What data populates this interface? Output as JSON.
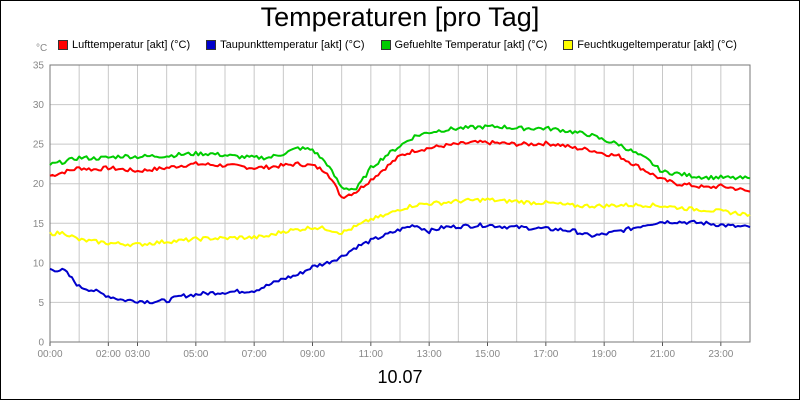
{
  "chart_data": {
    "type": "line",
    "title": "Temperaturen [pro Tag]",
    "ylabel": "°C",
    "xlabel": "10.07",
    "ylim": [
      0,
      35
    ],
    "y_ticks": [
      0,
      5,
      10,
      15,
      20,
      25,
      30,
      35
    ],
    "xlim": [
      0,
      24
    ],
    "x_ticks": [
      {
        "label": "00:00",
        "hour": 0
      },
      {
        "label": "02:00",
        "hour": 2
      },
      {
        "label": "03:00",
        "hour": 3
      },
      {
        "label": "05:00",
        "hour": 5
      },
      {
        "label": "07:00",
        "hour": 7
      },
      {
        "label": "09:00",
        "hour": 9
      },
      {
        "label": "11:00",
        "hour": 11
      },
      {
        "label": "13:00",
        "hour": 13
      },
      {
        "label": "15:00",
        "hour": 15
      },
      {
        "label": "17:00",
        "hour": 17
      },
      {
        "label": "19:00",
        "hour": 19
      },
      {
        "label": "21:00",
        "hour": 21
      },
      {
        "label": "23:00",
        "hour": 23
      }
    ],
    "grid": true,
    "x_hours": [
      0,
      0.5,
      1,
      1.5,
      2,
      2.5,
      3,
      3.5,
      4,
      4.5,
      5,
      5.5,
      6,
      6.5,
      7,
      7.5,
      8,
      8.5,
      9,
      9.5,
      10,
      10.5,
      11,
      11.5,
      12,
      12.5,
      13,
      13.5,
      14,
      14.5,
      15,
      15.5,
      16,
      16.5,
      17,
      17.5,
      18,
      18.5,
      19,
      19.5,
      20,
      20.5,
      21,
      21.5,
      22,
      22.5,
      23,
      23.5,
      24
    ],
    "series": [
      {
        "name": "Lufttemperatur [akt] (°C)",
        "color": "#ff0000",
        "values": [
          21.0,
          21.5,
          22.0,
          21.8,
          22.0,
          21.8,
          21.6,
          21.8,
          22.0,
          22.3,
          22.5,
          22.4,
          22.3,
          22.2,
          22.0,
          22.1,
          22.3,
          22.5,
          22.3,
          21.5,
          18.3,
          19.0,
          20.5,
          22.0,
          23.5,
          24.2,
          24.5,
          24.8,
          25.0,
          25.2,
          25.2,
          25.1,
          25.0,
          25.0,
          25.1,
          24.9,
          24.5,
          24.3,
          23.8,
          23.5,
          22.5,
          21.5,
          20.5,
          20.0,
          19.8,
          19.5,
          19.7,
          19.4,
          19.0
        ]
      },
      {
        "name": "Taupunkttemperatur [akt] (°C)",
        "color": "#0000cc",
        "values": [
          9.2,
          9.0,
          7.0,
          6.5,
          5.8,
          5.3,
          5.2,
          5.1,
          5.2,
          5.8,
          6.0,
          6.2,
          6.3,
          6.4,
          6.5,
          7.2,
          8.0,
          8.5,
          9.5,
          10.0,
          10.8,
          12.0,
          12.8,
          13.5,
          14.2,
          14.8,
          14.0,
          14.5,
          14.6,
          14.7,
          14.8,
          14.6,
          14.5,
          14.4,
          14.3,
          14.2,
          14.0,
          13.4,
          13.6,
          14.0,
          14.4,
          14.9,
          15.2,
          15.2,
          15.1,
          15.0,
          14.8,
          14.6,
          14.5
        ]
      },
      {
        "name": "Gefuehlte Temperatur [akt] (°C)",
        "color": "#00cc00",
        "values": [
          22.4,
          22.8,
          23.3,
          23.2,
          23.3,
          23.5,
          23.4,
          23.5,
          23.5,
          23.7,
          23.8,
          23.8,
          23.6,
          23.4,
          23.3,
          23.3,
          23.8,
          24.5,
          24.3,
          22.5,
          19.5,
          19.3,
          22.0,
          23.5,
          24.8,
          26.0,
          26.5,
          26.8,
          27.0,
          27.1,
          27.2,
          27.2,
          27.0,
          27.0,
          27.0,
          26.8,
          26.5,
          26.2,
          25.5,
          25.0,
          24.0,
          23.0,
          21.5,
          21.3,
          21.0,
          20.8,
          20.8,
          20.7,
          20.7
        ]
      },
      {
        "name": "Feuchtkugeltemperatur [akt] (°C)",
        "color": "#ffff00",
        "values": [
          13.7,
          13.8,
          12.9,
          12.7,
          12.5,
          12.4,
          12.3,
          12.5,
          12.7,
          12.8,
          13.0,
          13.1,
          13.1,
          13.2,
          13.2,
          13.4,
          14.0,
          14.2,
          14.5,
          14.3,
          13.8,
          14.6,
          15.5,
          16.0,
          16.8,
          17.3,
          17.5,
          17.6,
          17.8,
          17.9,
          18.0,
          17.8,
          17.8,
          17.6,
          17.6,
          17.4,
          17.2,
          17.2,
          17.2,
          17.3,
          17.3,
          17.3,
          17.2,
          17.0,
          16.8,
          16.7,
          16.5,
          16.3,
          16.1
        ]
      }
    ]
  }
}
